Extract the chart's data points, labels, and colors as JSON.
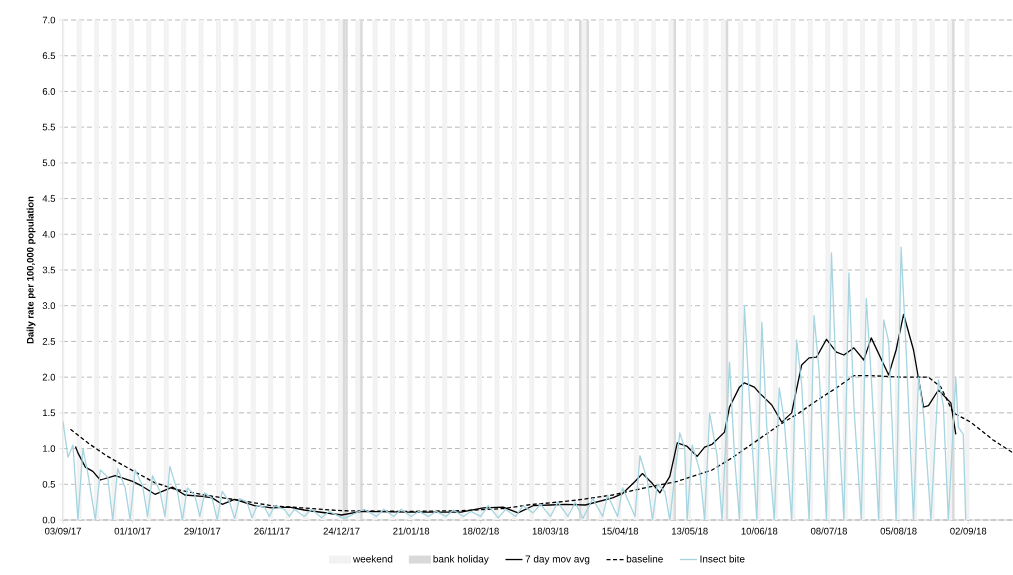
{
  "chart_data": {
    "type": "line",
    "ylabel": "Daily rate per 100,000 population",
    "xlim": [
      "2017-09-03",
      "2018-09-20"
    ],
    "xticks": [
      {
        "value": "2017-09-03",
        "label": "03/09/17"
      },
      {
        "value": "2017-10-01",
        "label": "01/10/17"
      },
      {
        "value": "2017-10-29",
        "label": "29/10/17"
      },
      {
        "value": "2017-11-26",
        "label": "26/11/17"
      },
      {
        "value": "2017-12-24",
        "label": "24/12/17"
      },
      {
        "value": "2018-01-21",
        "label": "21/01/18"
      },
      {
        "value": "2018-02-18",
        "label": "18/02/18"
      },
      {
        "value": "2018-03-18",
        "label": "18/03/18"
      },
      {
        "value": "2018-04-15",
        "label": "15/04/18"
      },
      {
        "value": "2018-05-13",
        "label": "13/05/18"
      },
      {
        "value": "2018-06-10",
        "label": "10/06/18"
      },
      {
        "value": "2018-07-08",
        "label": "08/07/18"
      },
      {
        "value": "2018-08-05",
        "label": "05/08/18"
      },
      {
        "value": "2018-09-02",
        "label": "02/09/18"
      }
    ],
    "ylim": [
      0,
      7
    ],
    "yticks": [
      {
        "value": 0,
        "label": "0.0"
      },
      0.5,
      {
        "value": 1,
        "label": "1.0"
      },
      1.5,
      {
        "value": 2,
        "label": "2.0"
      },
      2.5,
      {
        "value": 3,
        "label": "3.0"
      },
      3.5,
      {
        "value": 4,
        "label": "4.0"
      },
      4.5,
      {
        "value": 5,
        "label": "5.0"
      },
      5.5,
      {
        "value": 6,
        "label": "6.0"
      },
      6.5,
      {
        "value": 7,
        "label": "7.0"
      }
    ],
    "grid": "y",
    "legend": "bottom",
    "series": [
      {
        "name": "weekend",
        "type": "bar",
        "color": "#f2f2f2",
        "x": [
          "2017-09-03",
          "2017-09-09",
          "2017-09-10",
          "2017-09-16",
          "2017-09-17",
          "2017-09-23",
          "2017-09-24",
          "2017-09-30",
          "2017-10-01",
          "2017-10-07",
          "2017-10-08",
          "2017-10-14",
          "2017-10-15",
          "2017-10-21",
          "2017-10-22",
          "2017-10-28",
          "2017-10-29",
          "2017-11-04",
          "2017-11-05",
          "2017-11-11",
          "2017-11-12",
          "2017-11-18",
          "2017-11-19",
          "2017-11-25",
          "2017-11-26",
          "2017-12-02",
          "2017-12-03",
          "2017-12-09",
          "2017-12-10",
          "2017-12-16",
          "2017-12-17",
          "2017-12-23",
          "2017-12-24",
          "2017-12-30",
          "2017-12-31",
          "2018-01-06",
          "2018-01-07",
          "2018-01-13",
          "2018-01-14",
          "2018-01-20",
          "2018-01-21",
          "2018-01-27",
          "2018-01-28",
          "2018-02-03",
          "2018-02-04",
          "2018-02-10",
          "2018-02-11",
          "2018-02-17",
          "2018-02-18",
          "2018-02-24",
          "2018-02-25",
          "2018-03-03",
          "2018-03-04",
          "2018-03-10",
          "2018-03-11",
          "2018-03-17",
          "2018-03-18",
          "2018-03-24",
          "2018-03-25",
          "2018-03-31",
          "2018-04-01",
          "2018-04-07",
          "2018-04-08",
          "2018-04-14",
          "2018-04-15",
          "2018-04-21",
          "2018-04-22",
          "2018-04-28",
          "2018-04-29",
          "2018-05-05",
          "2018-05-06",
          "2018-05-12",
          "2018-05-13",
          "2018-05-19",
          "2018-05-20",
          "2018-05-26",
          "2018-05-27",
          "2018-06-02",
          "2018-06-03",
          "2018-06-09",
          "2018-06-10",
          "2018-06-16",
          "2018-06-17",
          "2018-06-23",
          "2018-06-24",
          "2018-06-30",
          "2018-07-01",
          "2018-07-07",
          "2018-07-08",
          "2018-07-14",
          "2018-07-15",
          "2018-07-21",
          "2018-07-22",
          "2018-07-28",
          "2018-07-29",
          "2018-08-04",
          "2018-08-05",
          "2018-08-11",
          "2018-08-12",
          "2018-08-18",
          "2018-08-19",
          "2018-08-25",
          "2018-08-26",
          "2018-09-01",
          "2018-09-02"
        ],
        "values": [
          7,
          7,
          7,
          7,
          7,
          7,
          7,
          7,
          7,
          7,
          7,
          7,
          7,
          7,
          7,
          7,
          7,
          7,
          7,
          7,
          7,
          7,
          7,
          7,
          7,
          7,
          7,
          7,
          7,
          7,
          7,
          7,
          7,
          7,
          7,
          7,
          7,
          7,
          7,
          7,
          7,
          7,
          7,
          7,
          7,
          7,
          7,
          7,
          7,
          7,
          7,
          7,
          7,
          7,
          7,
          7,
          7,
          7,
          7,
          7,
          7,
          7,
          7,
          7,
          7,
          7,
          7,
          7,
          7,
          7,
          7,
          7,
          7,
          7,
          7,
          7,
          7,
          7,
          7,
          7,
          7,
          7,
          7,
          7,
          7,
          7,
          7,
          7,
          7,
          7,
          7,
          7,
          7,
          7,
          7,
          7,
          7,
          7,
          7,
          7,
          7,
          7,
          7,
          7,
          7
        ]
      },
      {
        "name": "bank holiday",
        "type": "bar",
        "color": "#d9d9d9",
        "x": [
          "2017-12-25",
          "2017-12-26",
          "2018-01-01",
          "2018-03-30",
          "2018-04-02",
          "2018-05-07",
          "2018-05-28",
          "2018-08-27"
        ],
        "values": [
          7,
          7,
          7,
          7,
          7,
          7,
          7,
          7
        ]
      },
      {
        "name": "7 day mov avg",
        "color": "#000000",
        "line_style": "solid",
        "x": [
          "2017-09-08",
          "2017-09-09",
          "2017-09-12",
          "2017-09-15",
          "2017-09-18",
          "2017-09-24",
          "2017-10-01",
          "2017-10-05",
          "2017-10-10",
          "2017-10-17",
          "2017-10-22",
          "2017-10-29",
          "2017-11-02",
          "2017-11-06",
          "2017-11-11",
          "2017-11-19",
          "2017-11-26",
          "2017-12-03",
          "2017-12-09",
          "2017-12-24",
          "2018-01-01",
          "2018-01-20",
          "2018-02-10",
          "2018-02-19",
          "2018-02-27",
          "2018-03-05",
          "2018-03-11",
          "2018-03-18",
          "2018-03-24",
          "2018-04-01",
          "2018-04-12",
          "2018-04-16",
          "2018-04-21",
          "2018-04-24",
          "2018-04-28",
          "2018-05-01",
          "2018-05-05",
          "2018-05-08",
          "2018-05-12",
          "2018-05-16",
          "2018-05-19",
          "2018-05-22",
          "2018-05-27",
          "2018-05-29",
          "2018-06-02",
          "2018-06-04",
          "2018-06-08",
          "2018-06-10",
          "2018-06-15",
          "2018-06-19",
          "2018-06-23",
          "2018-06-27",
          "2018-06-30",
          "2018-07-03",
          "2018-07-07",
          "2018-07-11",
          "2018-07-14",
          "2018-07-18",
          "2018-07-22",
          "2018-07-25",
          "2018-08-01",
          "2018-08-04",
          "2018-08-07",
          "2018-08-11",
          "2018-08-15",
          "2018-08-17",
          "2018-08-21",
          "2018-08-26",
          "2018-08-28"
        ],
        "values": [
          1.03,
          0.94,
          0.74,
          0.68,
          0.56,
          0.62,
          0.54,
          0.47,
          0.36,
          0.46,
          0.35,
          0.33,
          0.31,
          0.22,
          0.29,
          0.2,
          0.17,
          0.18,
          0.14,
          0.07,
          0.12,
          0.11,
          0.11,
          0.17,
          0.18,
          0.1,
          0.2,
          0.21,
          0.22,
          0.21,
          0.31,
          0.37,
          0.54,
          0.65,
          0.51,
          0.38,
          0.61,
          1.08,
          1.03,
          0.89,
          1.02,
          1.06,
          1.23,
          1.58,
          1.86,
          1.92,
          1.86,
          1.78,
          1.61,
          1.37,
          1.5,
          2.17,
          2.27,
          2.28,
          2.53,
          2.35,
          2.31,
          2.41,
          2.24,
          2.55,
          2.03,
          2.38,
          2.88,
          2.38,
          1.58,
          1.6,
          1.82,
          1.64,
          1.2
        ]
      },
      {
        "name": "baseline",
        "color": "#000000",
        "line_style": "dashed",
        "x": [
          "2017-09-06",
          "2017-09-13",
          "2017-09-20",
          "2017-09-29",
          "2017-10-10",
          "2017-10-18",
          "2017-10-30",
          "2017-11-12",
          "2017-11-26",
          "2017-12-08",
          "2017-12-24",
          "2018-01-20",
          "2018-02-10",
          "2018-02-27",
          "2018-03-11",
          "2018-03-18",
          "2018-03-29",
          "2018-04-12",
          "2018-04-25",
          "2018-05-08",
          "2018-05-22",
          "2018-05-30",
          "2018-06-04",
          "2018-06-11",
          "2018-06-18",
          "2018-06-26",
          "2018-07-03",
          "2018-07-11",
          "2018-07-18",
          "2018-07-25",
          "2018-08-06",
          "2018-08-17",
          "2018-08-22",
          "2018-08-27",
          "2018-09-03",
          "2018-09-12",
          "2018-09-20"
        ],
        "values": [
          1.27,
          1.08,
          0.91,
          0.73,
          0.52,
          0.43,
          0.35,
          0.28,
          0.2,
          0.17,
          0.13,
          0.12,
          0.13,
          0.16,
          0.22,
          0.24,
          0.28,
          0.35,
          0.45,
          0.54,
          0.7,
          0.87,
          0.99,
          1.16,
          1.33,
          1.5,
          1.67,
          1.85,
          2.02,
          2.02,
          2.0,
          2.0,
          1.86,
          1.5,
          1.37,
          1.12,
          0.94
        ]
      },
      {
        "name": "Insect bite",
        "color": "#a5d5e0",
        "line_style": "solid",
        "x": [
          "2017-09-03",
          "2017-09-05",
          "2017-09-07",
          "2017-09-09",
          "2017-09-11",
          "2017-09-13",
          "2017-09-16",
          "2017-09-18",
          "2017-09-21",
          "2017-09-23",
          "2017-09-25",
          "2017-09-28",
          "2017-09-30",
          "2017-10-02",
          "2017-10-05",
          "2017-10-07",
          "2017-10-09",
          "2017-10-12",
          "2017-10-14",
          "2017-10-16",
          "2017-10-19",
          "2017-10-21",
          "2017-10-23",
          "2017-10-26",
          "2017-10-28",
          "2017-10-30",
          "2017-11-02",
          "2017-11-04",
          "2017-11-06",
          "2017-11-09",
          "2017-11-11",
          "2017-11-13",
          "2017-11-16",
          "2017-11-18",
          "2017-11-20",
          "2017-11-23",
          "2017-11-25",
          "2017-11-27",
          "2017-12-01",
          "2017-12-03",
          "2017-12-05",
          "2017-12-09",
          "2017-12-12",
          "2017-12-16",
          "2017-12-19",
          "2017-12-25",
          "2018-01-02",
          "2018-01-07",
          "2018-01-10",
          "2018-01-14",
          "2018-01-17",
          "2018-01-21",
          "2018-01-24",
          "2018-01-28",
          "2018-01-31",
          "2018-02-04",
          "2018-02-07",
          "2018-02-11",
          "2018-02-14",
          "2018-02-18",
          "2018-02-21",
          "2018-02-25",
          "2018-02-28",
          "2018-03-04",
          "2018-03-07",
          "2018-03-11",
          "2018-03-14",
          "2018-03-18",
          "2018-03-21",
          "2018-03-25",
          "2018-03-28",
          "2018-03-31",
          "2018-04-04",
          "2018-04-08",
          "2018-04-10",
          "2018-04-14",
          "2018-04-16",
          "2018-04-21",
          "2018-04-23",
          "2018-04-26",
          "2018-04-28",
          "2018-04-30",
          "2018-05-03",
          "2018-05-05",
          "2018-05-09",
          "2018-05-11",
          "2018-05-12",
          "2018-05-14",
          "2018-05-17",
          "2018-05-19",
          "2018-05-21",
          "2018-05-24",
          "2018-05-26",
          "2018-05-29",
          "2018-05-31",
          "2018-06-02",
          "2018-06-04",
          "2018-06-06",
          "2018-06-09",
          "2018-06-11",
          "2018-06-13",
          "2018-06-16",
          "2018-06-18",
          "2018-06-20",
          "2018-06-23",
          "2018-06-25",
          "2018-06-27",
          "2018-06-30",
          "2018-07-02",
          "2018-07-04",
          "2018-07-07",
          "2018-07-09",
          "2018-07-11",
          "2018-07-14",
          "2018-07-16",
          "2018-07-18",
          "2018-07-21",
          "2018-07-23",
          "2018-07-25",
          "2018-07-28",
          "2018-07-30",
          "2018-08-01",
          "2018-08-04",
          "2018-08-06",
          "2018-08-08",
          "2018-08-11",
          "2018-08-13",
          "2018-08-15",
          "2018-08-18",
          "2018-08-21",
          "2018-08-23",
          "2018-08-25",
          "2018-08-28",
          "2018-08-29",
          "2018-08-31",
          "2018-09-01"
        ],
        "values": [
          1.38,
          0.88,
          1.05,
          0.0,
          1.0,
          0.65,
          0.0,
          0.7,
          0.6,
          0.0,
          0.72,
          0.45,
          0.0,
          0.7,
          0.48,
          0.05,
          0.62,
          0.4,
          0.05,
          0.75,
          0.4,
          0.0,
          0.45,
          0.35,
          0.05,
          0.38,
          0.3,
          0.0,
          0.4,
          0.25,
          0.02,
          0.3,
          0.25,
          0.03,
          0.2,
          0.18,
          0.05,
          0.2,
          0.15,
          0.05,
          0.15,
          0.05,
          0.15,
          0.03,
          0.12,
          0.02,
          0.15,
          0.05,
          0.15,
          0.05,
          0.15,
          0.05,
          0.12,
          0.05,
          0.12,
          0.05,
          0.14,
          0.05,
          0.12,
          0.05,
          0.2,
          0.03,
          0.15,
          0.05,
          0.2,
          0.1,
          0.22,
          0.05,
          0.25,
          0.05,
          0.25,
          0.02,
          0.3,
          0.05,
          0.35,
          0.05,
          0.45,
          0.05,
          0.9,
          0.55,
          0.0,
          0.5,
          0.4,
          0.0,
          1.22,
          1.0,
          0.0,
          1.05,
          0.7,
          0.0,
          1.5,
          0.9,
          0.0,
          2.21,
          0.9,
          0.0,
          3.0,
          1.7,
          0.0,
          2.77,
          1.3,
          0.0,
          1.85,
          1.4,
          0.0,
          2.52,
          1.9,
          0.0,
          2.86,
          2.1,
          0.0,
          3.74,
          1.9,
          0.0,
          3.46,
          1.6,
          0.0,
          3.1,
          2.0,
          0.0,
          2.8,
          2.5,
          0.0,
          3.82,
          2.4,
          0.0,
          2.0,
          1.5,
          0.0,
          1.96,
          1.6,
          0.0,
          2.0,
          1.3,
          1.2,
          0.0
        ]
      }
    ]
  }
}
